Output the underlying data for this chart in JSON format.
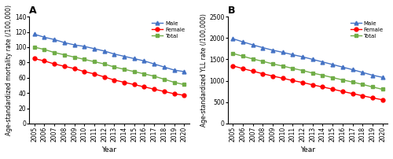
{
  "years": [
    2005,
    2006,
    2007,
    2008,
    2009,
    2010,
    2011,
    2012,
    2013,
    2014,
    2015,
    2016,
    2017,
    2018,
    2019,
    2020
  ],
  "panel_A": {
    "title": "A",
    "ylabel": "Age-standardized mortality rate (/100,000)",
    "xlabel": "Year",
    "ylim": [
      0,
      140
    ],
    "yticks": [
      0,
      20,
      40,
      60,
      80,
      100,
      120,
      140
    ],
    "male": [
      117,
      113,
      110,
      106,
      103,
      101,
      98,
      95,
      91,
      88,
      85,
      82,
      78,
      74,
      70,
      68
    ],
    "female": [
      85,
      82,
      78,
      75,
      72,
      68,
      65,
      61,
      57,
      54,
      51,
      48,
      45,
      42,
      39,
      37
    ],
    "total": [
      100,
      97,
      93,
      90,
      87,
      84,
      81,
      78,
      74,
      71,
      68,
      65,
      62,
      58,
      54,
      51
    ]
  },
  "panel_B": {
    "title": "B",
    "ylabel": "Age-standardized YLL rate (/100,000)",
    "xlabel": "Year",
    "ylim": [
      0,
      2500
    ],
    "yticks": [
      0,
      500,
      1000,
      1500,
      2000,
      2500
    ],
    "male": [
      1985,
      1910,
      1840,
      1775,
      1715,
      1665,
      1610,
      1560,
      1500,
      1440,
      1380,
      1320,
      1260,
      1195,
      1130,
      1080
    ],
    "female": [
      1350,
      1285,
      1225,
      1165,
      1110,
      1060,
      1005,
      960,
      905,
      855,
      805,
      750,
      700,
      650,
      600,
      555
    ],
    "total": [
      1640,
      1575,
      1510,
      1455,
      1395,
      1345,
      1290,
      1240,
      1180,
      1130,
      1075,
      1020,
      970,
      915,
      855,
      800
    ]
  },
  "colors": {
    "male": "#4472C4",
    "female": "#FF0000",
    "total": "#70AD47"
  },
  "legend_labels": [
    "Male",
    "Female",
    "Total"
  ]
}
